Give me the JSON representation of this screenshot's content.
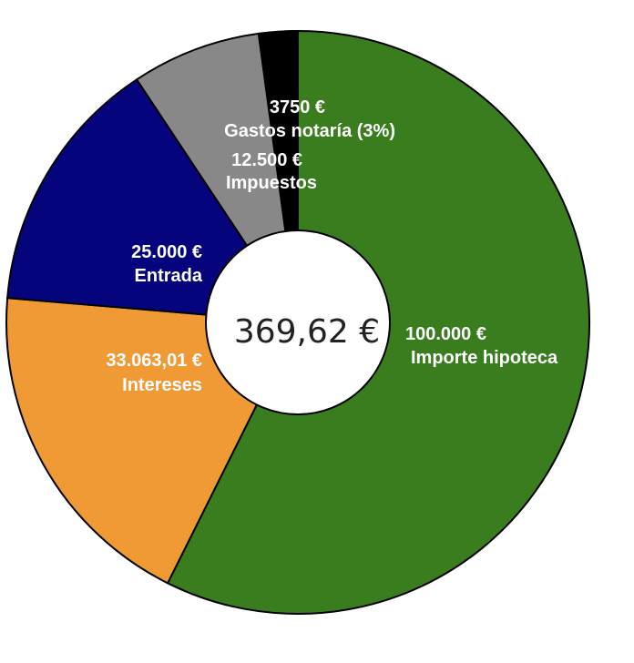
{
  "chart_data": {
    "type": "pie",
    "variant": "donut",
    "center_label": "369,62 €",
    "slices": [
      {
        "name": "Importe hipoteca",
        "label": "100.000 €",
        "value": 100000,
        "color": "#3a7d1f"
      },
      {
        "name": "Intereses",
        "label": "33.063,01 €",
        "value": 33063.01,
        "color": "#f09a35"
      },
      {
        "name": "Entrada",
        "label": "25.000 €",
        "value": 25000,
        "color": "#05047c"
      },
      {
        "name": "Impuestos",
        "label": "12.500 €",
        "value": 12500,
        "color": "#888888"
      },
      {
        "name": "Gastos notaría (3%)",
        "label": "3750 €",
        "value": 3750,
        "color": "#000000"
      }
    ]
  }
}
